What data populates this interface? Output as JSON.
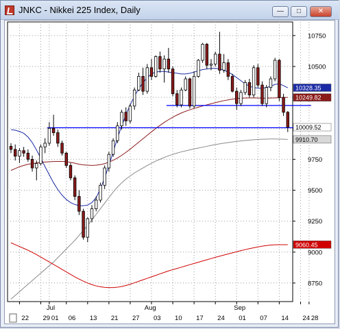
{
  "window": {
    "title": "JNKC - Nikkei 225 Index, Daily"
  },
  "colors": {
    "up": "#ffffff",
    "down": "#8b1a1a",
    "ma_blue": "#1b2aa6",
    "ma_dark_red": "#8b1a1a",
    "ma_gray": "#8a8a8a",
    "ma_red": "#d00000",
    "hline": "#0000ff"
  },
  "chart_data": {
    "type": "candlestick",
    "title": "JNKC - Nikkei 225 Index, Daily",
    "ylim": [
      8600,
      10860
    ],
    "y_ticks": [
      8750,
      9000,
      9250,
      9500,
      9750,
      10000,
      10250,
      10500,
      10750
    ],
    "y_tick_labels": [
      "8750",
      "9000",
      "9250",
      "9500",
      "9750",
      "10000",
      "10250",
      "10500",
      "10750"
    ],
    "x_tick_labels": [
      "22",
      "29",
      "01",
      "06",
      "13",
      "21",
      "27",
      "03",
      "10",
      "17",
      "24",
      "01",
      "07",
      "14",
      "24",
      "28"
    ],
    "x_tick_index": [
      2,
      7,
      9,
      13,
      18,
      23,
      28,
      33,
      38,
      43,
      48,
      53,
      58,
      63,
      68,
      70
    ],
    "month_labels": [
      {
        "label": "Jul",
        "index": 9
      },
      {
        "label": "Aug",
        "index": 32
      },
      {
        "label": "Sep",
        "index": 53
      }
    ],
    "price_badges": [
      {
        "label": "10328.35",
        "value": 10328.35,
        "color": "#1b2aa6",
        "text_color": "#ffffff"
      },
      {
        "label": "10249.82",
        "value": 10249.82,
        "color": "#8b1a1a",
        "text_color": "#ffffff"
      },
      {
        "label": "10009.52",
        "value": 10009.52,
        "color": "#ffffff",
        "text_color": "#000000"
      },
      {
        "label": "9910.70",
        "value": 9910.7,
        "color": "#d8d8d8",
        "text_color": "#000000"
      },
      {
        "label": "9060.45",
        "value": 9060.45,
        "color": "#d00000",
        "text_color": "#ffffff"
      }
    ],
    "hlines": [
      {
        "value": 10185,
        "start": 37,
        "end": 70
      },
      {
        "value": 10005,
        "start": 9,
        "end": 70
      }
    ],
    "candles": [
      [
        9855,
        9880,
        9800,
        9830
      ],
      [
        9830,
        9870,
        9740,
        9775
      ],
      [
        9775,
        9840,
        9720,
        9820
      ],
      [
        9820,
        9850,
        9770,
        9800
      ],
      [
        9800,
        9830,
        9730,
        9750
      ],
      [
        9750,
        9780,
        9650,
        9680
      ],
      [
        9680,
        9740,
        9580,
        9715
      ],
      [
        9715,
        9870,
        9700,
        9850
      ],
      [
        9850,
        9920,
        9800,
        9880
      ],
      [
        9880,
        10050,
        9860,
        10000
      ],
      [
        10000,
        10110,
        9940,
        9965
      ],
      [
        9965,
        9990,
        9850,
        9880
      ],
      [
        9880,
        9900,
        9780,
        9800
      ],
      [
        9800,
        9810,
        9680,
        9700
      ],
      [
        9700,
        9720,
        9580,
        9600
      ],
      [
        9600,
        9620,
        9420,
        9450
      ],
      [
        9450,
        9500,
        9300,
        9330
      ],
      [
        9330,
        9350,
        9100,
        9120
      ],
      [
        9120,
        9280,
        9080,
        9270
      ],
      [
        9270,
        9380,
        9240,
        9350
      ],
      [
        9350,
        9450,
        9330,
        9420
      ],
      [
        9420,
        9560,
        9400,
        9540
      ],
      [
        9540,
        9700,
        9510,
        9680
      ],
      [
        9680,
        9810,
        9650,
        9790
      ],
      [
        9790,
        9920,
        9770,
        9900
      ],
      [
        9900,
        10050,
        9880,
        10020
      ],
      [
        10020,
        10150,
        9990,
        10130
      ],
      [
        10130,
        10170,
        10020,
        10060
      ],
      [
        10060,
        10200,
        10040,
        10180
      ],
      [
        10180,
        10330,
        10150,
        10310
      ],
      [
        10310,
        10450,
        10300,
        10420
      ],
      [
        10420,
        10490,
        10270,
        10300
      ],
      [
        10300,
        10520,
        10280,
        10490
      ],
      [
        10490,
        10560,
        10390,
        10420
      ],
      [
        10420,
        10590,
        10410,
        10580
      ],
      [
        10580,
        10620,
        10450,
        10480
      ],
      [
        10480,
        10590,
        10370,
        10560
      ],
      [
        10560,
        10650,
        10450,
        10480
      ],
      [
        10480,
        10500,
        10260,
        10280
      ],
      [
        10280,
        10310,
        10170,
        10190
      ],
      [
        10190,
        10330,
        10170,
        10310
      ],
      [
        10310,
        10420,
        10300,
        10400
      ],
      [
        10400,
        10410,
        10160,
        10180
      ],
      [
        10180,
        10460,
        10160,
        10420
      ],
      [
        10420,
        10560,
        10410,
        10550
      ],
      [
        10550,
        10690,
        10530,
        10680
      ],
      [
        10680,
        10690,
        10480,
        10510
      ],
      [
        10510,
        10560,
        10470,
        10520
      ],
      [
        10520,
        10620,
        10500,
        10600
      ],
      [
        10600,
        10780,
        10440,
        10470
      ],
      [
        10470,
        10600,
        10450,
        10530
      ],
      [
        10530,
        10560,
        10390,
        10420
      ],
      [
        10420,
        10440,
        10290,
        10300
      ],
      [
        10300,
        10330,
        10150,
        10200
      ],
      [
        10200,
        10310,
        10180,
        10290
      ],
      [
        10290,
        10390,
        10270,
        10370
      ],
      [
        10370,
        10400,
        10250,
        10270
      ],
      [
        10270,
        10510,
        10250,
        10490
      ],
      [
        10490,
        10520,
        10330,
        10350
      ],
      [
        10350,
        10380,
        10180,
        10200
      ],
      [
        10200,
        10350,
        10170,
        10330
      ],
      [
        10330,
        10420,
        10300,
        10400
      ],
      [
        10400,
        10570,
        10380,
        10550
      ],
      [
        10550,
        10560,
        10220,
        10250
      ],
      [
        10250,
        10280,
        10100,
        10130
      ],
      [
        10130,
        10140,
        9970,
        10010
      ]
    ],
    "series": [
      {
        "values": [
          9990,
          9985,
          9975,
          9960,
          9930,
          9885,
          9825,
          9760,
          9690,
          9625,
          9560,
          9505,
          9460,
          9425,
          9400,
          9385,
          9375,
          9375,
          9380,
          9400,
          9440,
          9510,
          9600,
          9700,
          9810,
          9920,
          10020,
          10110,
          10190,
          10260,
          10320,
          10370,
          10410,
          10440,
          10455,
          10460,
          10460,
          10455,
          10450,
          10445,
          10440,
          10440,
          10445,
          10455,
          10465,
          10475,
          10480,
          10485,
          10485,
          10480,
          10470,
          10455,
          10435,
          10410,
          10385,
          10360,
          10340,
          10330,
          10325,
          10325,
          10330,
          10340,
          10355,
          10360,
          10345,
          10328
        ]
      },
      {
        "values": [
          9660,
          9675,
          9690,
          9700,
          9710,
          9715,
          9720,
          9725,
          9728,
          9730,
          9732,
          9733,
          9733,
          9730,
          9725,
          9718,
          9710,
          9705,
          9702,
          9700,
          9702,
          9707,
          9715,
          9727,
          9742,
          9760,
          9782,
          9806,
          9832,
          9860,
          9888,
          9916,
          9944,
          9972,
          9999,
          10024,
          10048,
          10070,
          10090,
          10108,
          10124,
          10138,
          10150,
          10161,
          10171,
          10181,
          10190,
          10199,
          10208,
          10216,
          10224,
          10230,
          10236,
          10240,
          10243,
          10245,
          10246,
          10246,
          10245,
          10244,
          10244,
          10245,
          10246,
          10248,
          10249,
          10250
        ]
      },
      {
        "values": [
          8620,
          8650,
          8680,
          8710,
          8740,
          8770,
          8800,
          8830,
          8860,
          8890,
          8920,
          8955,
          8990,
          9025,
          9060,
          9095,
          9135,
          9175,
          9215,
          9260,
          9305,
          9350,
          9395,
          9440,
          9485,
          9525,
          9560,
          9590,
          9615,
          9640,
          9660,
          9680,
          9700,
          9718,
          9735,
          9750,
          9765,
          9778,
          9790,
          9800,
          9810,
          9818,
          9826,
          9834,
          9841,
          9848,
          9855,
          9862,
          9869,
          9875,
          9880,
          9885,
          9890,
          9894,
          9898,
          9902,
          9905,
          9908,
          9910,
          9912,
          9913,
          9914,
          9914,
          9913,
          9912,
          9911
        ]
      },
      {
        "values": [
          9075,
          9060,
          9045,
          9030,
          9015,
          8998,
          8980,
          8960,
          8940,
          8920,
          8900,
          8880,
          8860,
          8840,
          8820,
          8800,
          8782,
          8765,
          8750,
          8737,
          8727,
          8720,
          8715,
          8713,
          8713,
          8716,
          8722,
          8730,
          8740,
          8752,
          8764,
          8776,
          8788,
          8800,
          8812,
          8824,
          8836,
          8848,
          8858,
          8868,
          8878,
          8888,
          8898,
          8908,
          8918,
          8928,
          8938,
          8948,
          8958,
          8967,
          8976,
          8985,
          8994,
          9003,
          9012,
          9020,
          9028,
          9035,
          9042,
          9048,
          9053,
          9057,
          9059,
          9060,
          9060,
          9060
        ]
      }
    ]
  }
}
